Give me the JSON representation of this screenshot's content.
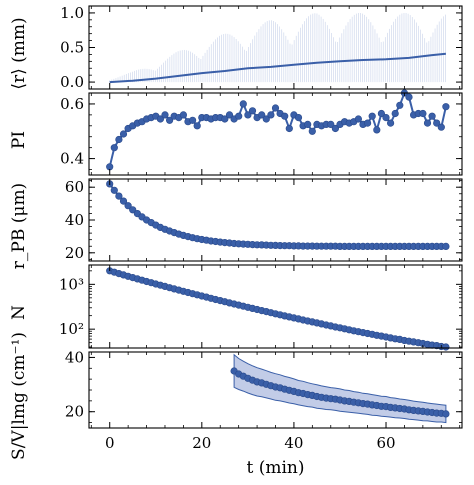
{
  "colors": {
    "series": "#3a5fa8",
    "band": "#8fa3d3",
    "spike": "#a9b9de"
  },
  "chart_data": [
    {
      "type": "line",
      "ylabel": "⟨r⟩ (mm)",
      "ylim": [
        -0.1,
        1.1
      ],
      "yticks": [
        0.0,
        0.5,
        1.0
      ],
      "yticklabels": [
        "0.0",
        "0.5",
        "1.0"
      ],
      "x": [
        0,
        5,
        10,
        15,
        20,
        25,
        30,
        35,
        40,
        45,
        50,
        55,
        60,
        65,
        70,
        73
      ],
      "values": [
        0.0,
        0.02,
        0.05,
        0.09,
        0.13,
        0.16,
        0.2,
        0.22,
        0.25,
        0.28,
        0.3,
        0.32,
        0.33,
        0.35,
        0.39,
        0.41
      ],
      "spike_max": [
        0.05,
        0.15,
        0.3,
        0.45,
        0.6,
        0.7,
        0.8,
        0.9,
        0.95,
        1.0,
        1.0,
        1.0,
        1.0,
        1.0,
        1.0,
        1.0
      ]
    },
    {
      "type": "line",
      "ylabel": "PI",
      "ylim": [
        0.34,
        0.64
      ],
      "yticks": [
        0.4,
        0.6
      ],
      "yticklabels": [
        "0.4",
        "0.6"
      ],
      "x": [
        0,
        1,
        2,
        3,
        4,
        5,
        6,
        7,
        8,
        9,
        10,
        11,
        12,
        13,
        14,
        15,
        16,
        17,
        18,
        19,
        20,
        21,
        22,
        23,
        24,
        25,
        26,
        27,
        28,
        29,
        30,
        31,
        32,
        33,
        34,
        35,
        36,
        37,
        38,
        39,
        40,
        41,
        42,
        43,
        44,
        45,
        46,
        47,
        48,
        49,
        50,
        51,
        52,
        53,
        54,
        55,
        56,
        57,
        58,
        59,
        60,
        61,
        62,
        63,
        64,
        65,
        66,
        67,
        68,
        69,
        70,
        71,
        72,
        73
      ],
      "values": [
        0.37,
        0.44,
        0.47,
        0.49,
        0.51,
        0.52,
        0.53,
        0.535,
        0.545,
        0.55,
        0.555,
        0.545,
        0.56,
        0.54,
        0.555,
        0.55,
        0.56,
        0.535,
        0.54,
        0.52,
        0.55,
        0.55,
        0.545,
        0.55,
        0.55,
        0.545,
        0.56,
        0.545,
        0.555,
        0.6,
        0.56,
        0.575,
        0.55,
        0.56,
        0.545,
        0.56,
        0.585,
        0.565,
        0.555,
        0.51,
        0.56,
        0.55,
        0.52,
        0.525,
        0.5,
        0.525,
        0.52,
        0.525,
        0.525,
        0.51,
        0.525,
        0.535,
        0.53,
        0.535,
        0.545,
        0.525,
        0.53,
        0.555,
        0.505,
        0.565,
        0.55,
        0.53,
        0.565,
        0.595,
        0.64,
        0.625,
        0.56,
        0.565,
        0.565,
        0.53,
        0.555,
        0.53,
        0.515,
        0.59
      ]
    },
    {
      "type": "line",
      "ylabel": "r_PB (μm)",
      "ylim": [
        15,
        65
      ],
      "yticks": [
        20,
        40,
        60
      ],
      "yticklabels": [
        "20",
        "40",
        "60"
      ],
      "x": [
        0,
        1,
        2,
        3,
        4,
        5,
        6,
        7,
        8,
        9,
        10,
        11,
        12,
        13,
        14,
        15,
        16,
        17,
        18,
        19,
        20,
        21,
        22,
        23,
        24,
        25,
        26,
        27,
        28,
        29,
        30,
        31,
        32,
        33,
        34,
        35,
        36,
        37,
        38,
        39,
        40,
        41,
        42,
        43,
        44,
        45,
        46,
        47,
        48,
        49,
        50,
        51,
        52,
        53,
        54,
        55,
        56,
        57,
        58,
        59,
        60,
        61,
        62,
        63,
        64,
        65,
        66,
        67,
        68,
        69,
        70,
        71,
        72,
        73
      ],
      "values": [
        62.0,
        58.1,
        54.6,
        51.5,
        48.7,
        46.2,
        43.9,
        41.9,
        40.0,
        38.4,
        36.9,
        35.5,
        34.3,
        33.3,
        32.3,
        31.4,
        30.6,
        29.9,
        29.2,
        28.6,
        28.1,
        27.7,
        27.2,
        26.9,
        26.5,
        26.2,
        26.0,
        25.7,
        25.5,
        25.3,
        25.2,
        25.0,
        24.9,
        24.8,
        24.7,
        24.6,
        24.5,
        24.4,
        24.3,
        24.3,
        24.2,
        24.2,
        24.1,
        24.1,
        24.1,
        24.0,
        24.0,
        24.0,
        24.0,
        24.0,
        23.9,
        23.9,
        23.9,
        23.9,
        23.9,
        23.9,
        23.9,
        23.9,
        23.9,
        23.9,
        23.9,
        23.9,
        23.9,
        23.9,
        23.9,
        23.9,
        23.9,
        23.9,
        23.9,
        23.9,
        23.9,
        23.9,
        23.9,
        23.9
      ]
    },
    {
      "type": "line",
      "ylabel": "N",
      "yscale": "log",
      "ylim": [
        38,
        2700
      ],
      "yticks": [
        100,
        1000
      ],
      "yticklabels": [
        "10²",
        "10³"
      ],
      "x": [
        0,
        1,
        2,
        3,
        4,
        5,
        6,
        7,
        8,
        9,
        10,
        11,
        12,
        13,
        14,
        15,
        16,
        17,
        18,
        19,
        20,
        21,
        22,
        23,
        24,
        25,
        26,
        27,
        28,
        29,
        30,
        31,
        32,
        33,
        34,
        35,
        36,
        37,
        38,
        39,
        40,
        41,
        42,
        43,
        44,
        45,
        46,
        47,
        48,
        49,
        50,
        51,
        52,
        53,
        54,
        55,
        56,
        57,
        58,
        59,
        60,
        61,
        62,
        63,
        64,
        65,
        66,
        67,
        68,
        69,
        70,
        71,
        72,
        73
      ],
      "values": [
        2000,
        1869,
        1740,
        1621,
        1512,
        1412,
        1320,
        1236,
        1158,
        1086,
        1018,
        956,
        898,
        843,
        792,
        745,
        700,
        658,
        619,
        583,
        549,
        518,
        488,
        460,
        434,
        409,
        386,
        364,
        344,
        325,
        307,
        290,
        275,
        260,
        246,
        233,
        220,
        209,
        198,
        188,
        178,
        169,
        160,
        152,
        145,
        138,
        131,
        124,
        118,
        112,
        107,
        102,
        97,
        92,
        88,
        84,
        80,
        77,
        73,
        70,
        67,
        64,
        61,
        59,
        56,
        54,
        52,
        50,
        48,
        46,
        44,
        43,
        41,
        40
      ]
    },
    {
      "type": "area",
      "ylabel": "S/V|lmg (cm⁻¹)",
      "ylim": [
        14,
        42
      ],
      "yticks": [
        20,
        40
      ],
      "yticklabels": [
        "20",
        "40"
      ],
      "xticks": [
        0,
        20,
        40,
        60
      ],
      "xticklabels": [
        "0",
        "20",
        "40",
        "60"
      ],
      "xlim": [
        -4.5,
        76.5
      ],
      "xlabel": "t (min)",
      "x": [
        27,
        28,
        29,
        30,
        31,
        32,
        33,
        34,
        35,
        36,
        37,
        38,
        39,
        40,
        41,
        42,
        43,
        44,
        45,
        46,
        47,
        48,
        49,
        50,
        51,
        52,
        53,
        54,
        55,
        56,
        57,
        58,
        59,
        60,
        61,
        62,
        63,
        64,
        65,
        66,
        67,
        68,
        69,
        70,
        71,
        72,
        73
      ],
      "values": [
        35.0,
        33.9,
        33.1,
        32.3,
        31.6,
        31.0,
        30.6,
        30.1,
        29.6,
        29.1,
        28.8,
        28.3,
        27.9,
        27.5,
        27.0,
        26.7,
        26.3,
        26.0,
        25.6,
        25.3,
        25.0,
        24.8,
        24.6,
        24.3,
        24.0,
        23.8,
        23.5,
        23.3,
        23.0,
        22.8,
        22.5,
        22.3,
        22.0,
        21.9,
        21.6,
        21.4,
        21.2,
        21.0,
        20.7,
        20.5,
        20.3,
        20.1,
        19.9,
        19.7,
        19.5,
        19.4,
        19.2
      ],
      "band_upper": [
        41.0,
        39.6,
        38.6,
        37.7,
        36.9,
        36.2,
        35.7,
        35.1,
        34.5,
        34.0,
        33.6,
        33.0,
        32.6,
        32.1,
        31.5,
        31.2,
        30.7,
        30.3,
        29.9,
        29.5,
        29.2,
        28.9,
        28.7,
        28.4,
        28.0,
        27.8,
        27.4,
        27.2,
        26.8,
        26.6,
        26.3,
        26.0,
        25.7,
        25.6,
        25.2,
        25.0,
        24.7,
        24.5,
        24.2,
        23.9,
        23.7,
        23.5,
        23.2,
        23.0,
        22.8,
        22.6,
        22.4
      ],
      "band_lower": [
        29.0,
        28.2,
        27.6,
        26.9,
        26.3,
        25.8,
        25.5,
        25.1,
        24.7,
        24.2,
        24.0,
        23.6,
        23.2,
        22.9,
        22.5,
        22.2,
        21.9,
        21.7,
        21.3,
        21.1,
        20.8,
        20.7,
        20.5,
        20.2,
        20.0,
        19.8,
        19.6,
        19.4,
        19.2,
        19.0,
        18.7,
        18.6,
        18.3,
        18.2,
        18.0,
        17.8,
        17.7,
        17.5,
        17.2,
        17.1,
        16.9,
        16.7,
        16.6,
        16.4,
        16.2,
        16.2,
        16.0
      ]
    }
  ]
}
